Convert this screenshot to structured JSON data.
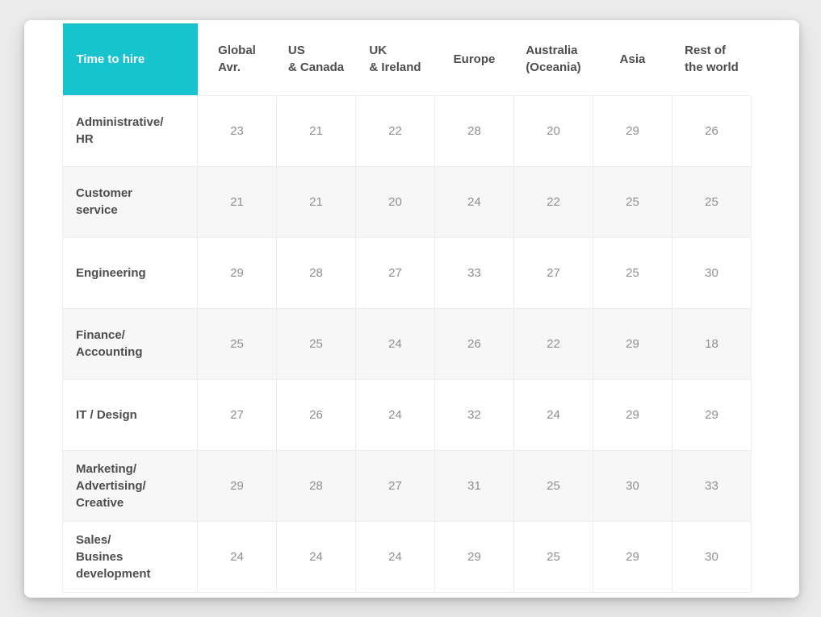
{
  "table": {
    "corner_label": "Time to hire",
    "columns_display": [
      "Global\nAvr.",
      "US\n& Canada",
      "UK\n& Ireland",
      "Europe",
      "Australia\n(Oceania)",
      "Asia",
      "Rest of\nthe world"
    ],
    "row_labels_display": [
      "Administrative/\nHR",
      "Customer\nservice",
      "Engineering",
      "Finance/\nAccounting",
      "IT / Design",
      "Marketing/\nAdvertising/\nCreative",
      "Sales/\nBusines\ndevelopment"
    ]
  },
  "colors": {
    "accent_teal": "#17c3cd",
    "header_text": "#4d4d4d",
    "value_text": "#8e8e8e",
    "stripe_row": "#f7f7f7",
    "grid_line": "#ededed",
    "card_background": "#ffffff",
    "page_background": "#ececec"
  },
  "chart_data": {
    "type": "table",
    "title": "Time to hire",
    "columns": [
      "Global Avr.",
      "US & Canada",
      "UK & Ireland",
      "Europe",
      "Australia (Oceania)",
      "Asia",
      "Rest of the world"
    ],
    "row_labels": [
      "Administrative/HR",
      "Customer service",
      "Engineering",
      "Finance/Accounting",
      "IT / Design",
      "Marketing/Advertising/Creative",
      "Sales/Busines development"
    ],
    "rows": [
      [
        23,
        21,
        22,
        28,
        20,
        29,
        26
      ],
      [
        21,
        21,
        20,
        24,
        22,
        25,
        25
      ],
      [
        29,
        28,
        27,
        33,
        27,
        25,
        30
      ],
      [
        25,
        25,
        24,
        26,
        22,
        29,
        18
      ],
      [
        27,
        26,
        24,
        32,
        24,
        29,
        29
      ],
      [
        29,
        28,
        27,
        31,
        25,
        30,
        33
      ],
      [
        24,
        24,
        24,
        29,
        25,
        29,
        30
      ]
    ]
  }
}
